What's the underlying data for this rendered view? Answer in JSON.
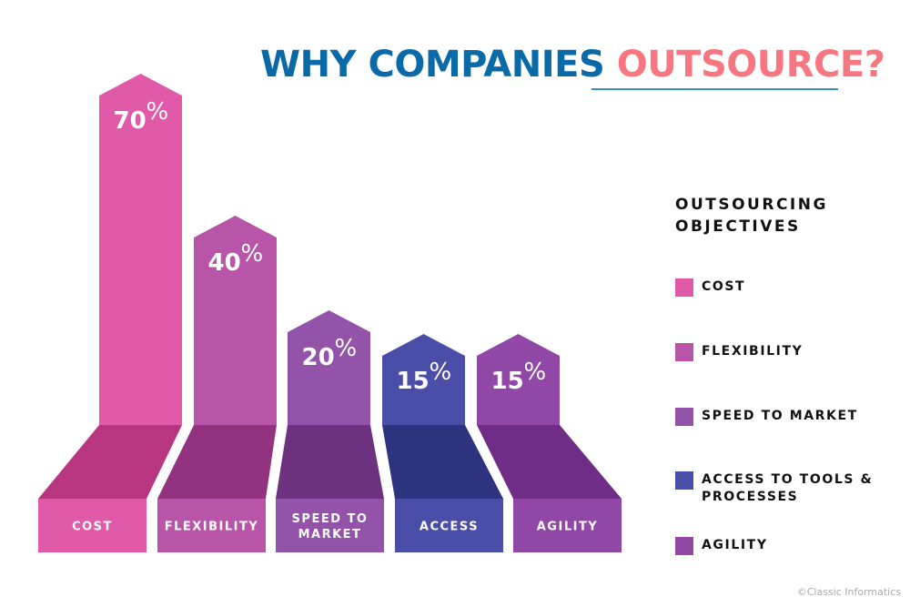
{
  "title": {
    "part1": "WHY COMPANIES",
    "part2": "OUTSOURCE?"
  },
  "colors": {
    "title_blue": "#0a6aa8",
    "title_pink": "#f7767f"
  },
  "chart_data": {
    "type": "bar",
    "categories": [
      "COST",
      "FLEXIBILITY",
      "SPEED TO MARKET",
      "ACCESS",
      "AGILITY"
    ],
    "category_lines": [
      [
        "COST"
      ],
      [
        "FLEXIBILITY"
      ],
      [
        "SPEED TO",
        "MARKET"
      ],
      [
        "ACCESS"
      ],
      [
        "AGILITY"
      ]
    ],
    "values": [
      70,
      40,
      20,
      15,
      15
    ],
    "value_labels": [
      "70",
      "40",
      "20",
      "15",
      "15"
    ],
    "unit": "%",
    "colors": [
      "#e05aa9",
      "#b955a8",
      "#9353a8",
      "#4a4ea8",
      "#9047a6"
    ],
    "floor_colors": [
      "#b8367f",
      "#93337f",
      "#6c327f",
      "#2e3380",
      "#6f2d85"
    ]
  },
  "legend": {
    "title_lines": [
      "OUTSOURCING",
      "OBJECTIVES"
    ],
    "items": [
      {
        "label": "COST",
        "color": "#e05aa9"
      },
      {
        "label": "FLEXIBILITY",
        "color": "#b955a8"
      },
      {
        "label": "SPEED TO MARKET",
        "color": "#9353a8"
      },
      {
        "label": "ACCESS TO TOOLS & PROCESSES",
        "color": "#4a4ea8"
      },
      {
        "label": "AGILITY",
        "color": "#9047a6"
      }
    ]
  },
  "credit": "©Classic Informatics"
}
